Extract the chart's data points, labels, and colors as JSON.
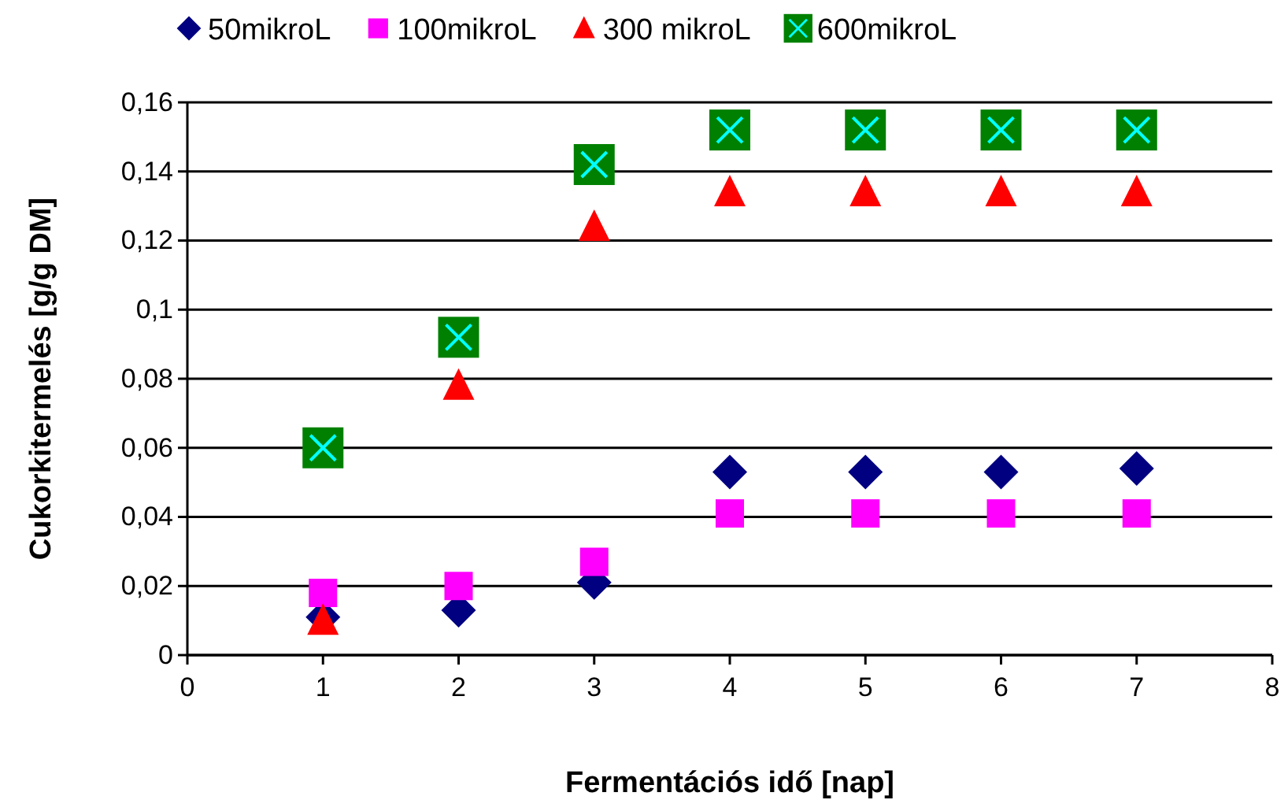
{
  "chart_data": {
    "type": "scatter",
    "xlabel": "Fermentációs idő [nap]",
    "ylabel": "Cukorkitermelés  [g/g DM]",
    "xlim": [
      0,
      8
    ],
    "xticks": [
      0,
      1,
      2,
      3,
      4,
      5,
      6,
      7,
      8
    ],
    "ylim": [
      0,
      0.16
    ],
    "yticks": [
      0,
      {
        "value": 0.02,
        "label": "0,02"
      },
      {
        "value": 0.04,
        "label": "0,04"
      },
      {
        "value": 0.06,
        "label": "0,06"
      },
      {
        "value": 0.08,
        "label": "0,08"
      },
      {
        "value": 0.1,
        "label": "0,1"
      },
      {
        "value": 0.12,
        "label": "0,12"
      },
      {
        "value": 0.14,
        "label": "0,14"
      },
      {
        "value": 0.16,
        "label": "0,16"
      }
    ],
    "grid": "y",
    "legend": "top",
    "x": [
      1,
      2,
      3,
      4,
      5,
      6,
      7
    ],
    "series": [
      {
        "name": "50mikroL",
        "color": "#000080",
        "marker": "diamond",
        "values": [
          0.011,
          0.013,
          0.021,
          0.053,
          0.053,
          0.053,
          0.054
        ]
      },
      {
        "name": "100mikroL",
        "color": "#ff00ff",
        "marker": "square",
        "values": [
          0.018,
          0.02,
          0.027,
          0.041,
          0.041,
          0.041,
          0.041
        ]
      },
      {
        "name": "300 mikroL",
        "color": "#ff0000",
        "marker": "triangle",
        "values": [
          0.01,
          0.078,
          0.124,
          0.134,
          0.134,
          0.134,
          0.134
        ]
      },
      {
        "name": "600mikroL",
        "color": "#008000",
        "values": [
          0.06,
          0.092,
          0.142,
          0.152,
          0.152,
          0.152,
          0.152
        ]
      }
    ]
  }
}
